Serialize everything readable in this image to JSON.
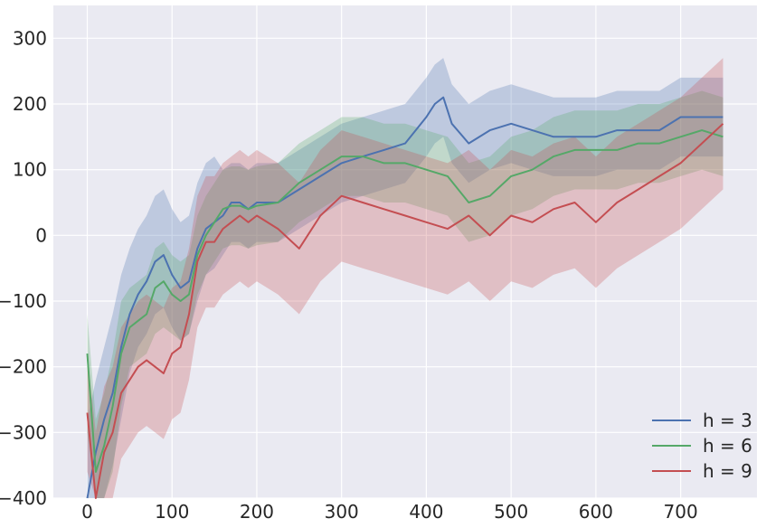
{
  "chart_data": {
    "type": "line",
    "title": "",
    "xlabel": "",
    "ylabel": "",
    "xlim": [
      -40,
      790
    ],
    "ylim": [
      -400,
      350
    ],
    "xticks": [
      0,
      100,
      200,
      300,
      400,
      500,
      600,
      700
    ],
    "yticks": [
      -400,
      -300,
      -200,
      -100,
      0,
      100,
      200,
      300
    ],
    "grid": true,
    "legend_position": "bottom-right",
    "background": "#eaeaf2",
    "series": [
      {
        "name": "h = 3",
        "color": "#4c72b0",
        "x": [
          0,
          10,
          20,
          30,
          40,
          50,
          60,
          70,
          80,
          90,
          100,
          110,
          120,
          130,
          140,
          150,
          160,
          170,
          180,
          190,
          200,
          225,
          250,
          275,
          300,
          325,
          350,
          375,
          400,
          410,
          420,
          430,
          450,
          475,
          500,
          525,
          550,
          575,
          600,
          625,
          650,
          675,
          700,
          725,
          750
        ],
        "y": [
          -400,
          -330,
          -280,
          -240,
          -170,
          -120,
          -90,
          -70,
          -40,
          -30,
          -60,
          -80,
          -70,
          -20,
          10,
          20,
          30,
          50,
          50,
          40,
          50,
          50,
          70,
          90,
          110,
          120,
          130,
          140,
          180,
          200,
          210,
          170,
          140,
          160,
          170,
          160,
          150,
          150,
          150,
          160,
          160,
          160,
          180,
          180,
          180
        ],
        "lower": [
          -400,
          -400,
          -400,
          -350,
          -280,
          -210,
          -170,
          -150,
          -120,
          -110,
          -140,
          -160,
          -150,
          -100,
          -60,
          -50,
          -30,
          -10,
          -10,
          -20,
          -10,
          -10,
          10,
          30,
          50,
          60,
          70,
          80,
          120,
          140,
          150,
          110,
          80,
          100,
          110,
          100,
          90,
          90,
          90,
          100,
          100,
          100,
          120,
          120,
          120
        ],
        "upper": [
          -280,
          -220,
          -170,
          -120,
          -60,
          -20,
          10,
          30,
          60,
          70,
          40,
          20,
          30,
          80,
          110,
          120,
          100,
          110,
          110,
          100,
          110,
          110,
          130,
          150,
          170,
          180,
          190,
          200,
          240,
          260,
          270,
          230,
          200,
          220,
          230,
          220,
          210,
          210,
          210,
          220,
          220,
          220,
          240,
          240,
          240
        ]
      },
      {
        "name": "h = 6",
        "color": "#55a868",
        "x": [
          0,
          10,
          20,
          30,
          40,
          50,
          60,
          70,
          80,
          90,
          100,
          110,
          120,
          130,
          140,
          150,
          160,
          170,
          180,
          190,
          200,
          225,
          250,
          275,
          300,
          325,
          350,
          375,
          400,
          425,
          450,
          475,
          500,
          525,
          550,
          575,
          600,
          625,
          650,
          675,
          700,
          725,
          750
        ],
        "y": [
          -180,
          -360,
          -320,
          -260,
          -180,
          -140,
          -130,
          -120,
          -80,
          -70,
          -90,
          -100,
          -90,
          -30,
          0,
          20,
          40,
          45,
          45,
          40,
          45,
          50,
          80,
          100,
          120,
          120,
          110,
          110,
          100,
          90,
          50,
          60,
          90,
          100,
          120,
          130,
          130,
          130,
          140,
          140,
          150,
          160,
          150
        ],
        "lower": [
          -300,
          -400,
          -400,
          -360,
          -260,
          -200,
          -190,
          -180,
          -150,
          -140,
          -150,
          -160,
          -150,
          -90,
          -60,
          -40,
          -20,
          -15,
          -15,
          -20,
          -15,
          -10,
          20,
          40,
          60,
          60,
          50,
          50,
          40,
          30,
          -10,
          0,
          30,
          40,
          60,
          70,
          70,
          70,
          80,
          80,
          90,
          100,
          90
        ],
        "upper": [
          -120,
          -280,
          -240,
          -180,
          -100,
          -80,
          -70,
          -60,
          -20,
          -10,
          -30,
          -40,
          -30,
          30,
          60,
          80,
          100,
          105,
          105,
          100,
          105,
          110,
          140,
          160,
          180,
          180,
          170,
          170,
          160,
          150,
          110,
          120,
          150,
          160,
          180,
          190,
          190,
          190,
          200,
          200,
          210,
          220,
          210
        ]
      },
      {
        "name": "h = 9",
        "color": "#c44e52",
        "x": [
          0,
          10,
          20,
          30,
          40,
          50,
          60,
          70,
          80,
          90,
          100,
          110,
          120,
          130,
          140,
          150,
          160,
          170,
          180,
          190,
          200,
          225,
          250,
          275,
          300,
          325,
          350,
          375,
          400,
          425,
          450,
          475,
          500,
          525,
          550,
          575,
          600,
          625,
          650,
          675,
          700,
          725,
          750
        ],
        "y": [
          -270,
          -400,
          -330,
          -300,
          -240,
          -220,
          -200,
          -190,
          -200,
          -210,
          -180,
          -170,
          -120,
          -40,
          -10,
          -10,
          10,
          20,
          30,
          20,
          30,
          10,
          -20,
          30,
          60,
          50,
          40,
          30,
          20,
          10,
          30,
          0,
          30,
          20,
          40,
          50,
          20,
          50,
          70,
          90,
          110,
          140,
          170
        ],
        "lower": [
          -360,
          -400,
          -400,
          -400,
          -340,
          -320,
          -300,
          -290,
          -300,
          -310,
          -280,
          -270,
          -220,
          -140,
          -110,
          -110,
          -90,
          -80,
          -70,
          -80,
          -70,
          -90,
          -120,
          -70,
          -40,
          -50,
          -60,
          -70,
          -80,
          -90,
          -70,
          -100,
          -70,
          -80,
          -60,
          -50,
          -80,
          -50,
          -30,
          -10,
          10,
          40,
          70
        ],
        "upper": [
          -180,
          -300,
          -230,
          -200,
          -140,
          -120,
          -100,
          -90,
          -100,
          -110,
          -80,
          -70,
          -20,
          60,
          90,
          90,
          110,
          120,
          130,
          120,
          130,
          110,
          80,
          130,
          160,
          150,
          140,
          130,
          120,
          110,
          130,
          100,
          130,
          120,
          140,
          150,
          120,
          150,
          170,
          190,
          210,
          240,
          270
        ]
      }
    ]
  }
}
